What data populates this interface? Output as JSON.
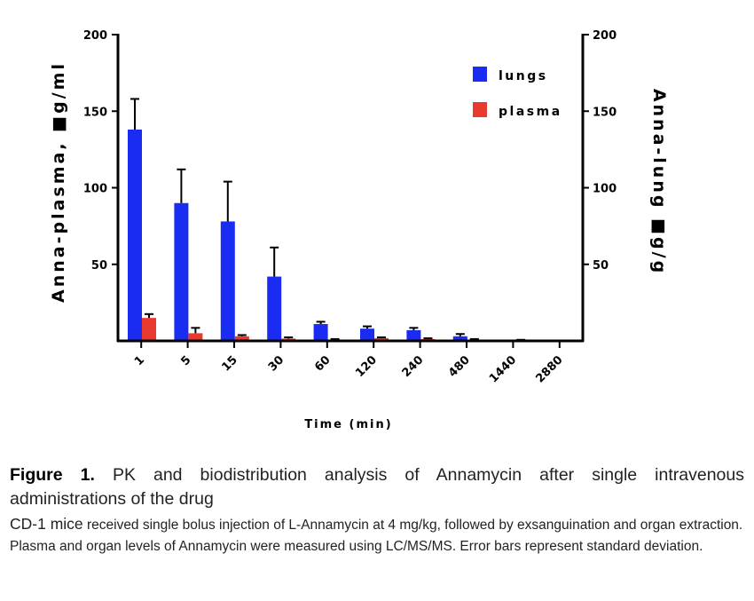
{
  "chart_data": {
    "type": "bar",
    "categories": [
      "1",
      "5",
      "15",
      "30",
      "60",
      "120",
      "240",
      "480",
      "1440",
      "2880"
    ],
    "xlabel": "Time (min)",
    "ylabel_left": "Anna-plasma, ■g/ml",
    "ylabel_right": "Anna-lung ■g/g",
    "ylim": [
      0,
      200
    ],
    "yticks": [
      "50",
      "100",
      "150",
      "200"
    ],
    "legend_position": "top-right",
    "series": [
      {
        "name": "lungs",
        "color": "#1a2cf2",
        "values": [
          138,
          90,
          78,
          42,
          11,
          8,
          7,
          3,
          0,
          0
        ],
        "errors": [
          20,
          22,
          26,
          19,
          1.5,
          1.5,
          1.5,
          1.5,
          0,
          0
        ]
      },
      {
        "name": "plasma",
        "color": "#e83a2e",
        "values": [
          15,
          5,
          3,
          1.5,
          0.8,
          1.8,
          1.2,
          0.8,
          0.4,
          0
        ],
        "errors": [
          2.5,
          3.5,
          0.8,
          0.8,
          0.4,
          0.5,
          0.5,
          0.4,
          0.3,
          0
        ]
      }
    ]
  },
  "caption": {
    "figure_label": "Figure 1.",
    "title_line1": "PK and biodistribution analysis of Annamycin after single intravenous",
    "title_line2": "administrations of the drug",
    "body_lead": "CD-1 mice",
    "body_text": "received single bolus injection of L-Annamycin at 4 mg/kg, followed by exsanguination and organ extraction. Plasma and organ levels of Annamycin were measured using LC/MS/MS. Error bars represent standard deviation."
  }
}
